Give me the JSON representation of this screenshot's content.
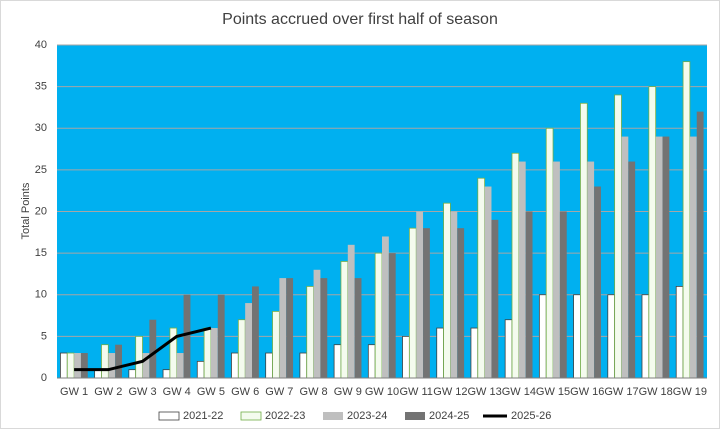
{
  "chart_data": {
    "type": "bar",
    "title": "Points accrued over first half of season",
    "y_label": "Total Points",
    "categories": [
      "GW 1",
      "GW 2",
      "GW 3",
      "GW 4",
      "GW 5",
      "GW 6",
      "GW 7",
      "GW 8",
      "GW 9",
      "GW 10",
      "GW 11",
      "GW 12",
      "GW 13",
      "GW 14",
      "GW 15",
      "GW 16",
      "GW 17",
      "GW 18",
      "GW 19"
    ],
    "series": [
      {
        "name": "2021-22",
        "color": "#ffffff",
        "stroke": "#404040",
        "values": [
          3,
          1,
          1,
          1,
          2,
          3,
          3,
          3,
          4,
          4,
          5,
          6,
          6,
          7,
          10,
          10,
          10,
          10,
          11
        ]
      },
      {
        "name": "2022-23",
        "color": "#f4fbee",
        "stroke": "#70ad47",
        "values": [
          3,
          4,
          5,
          6,
          6,
          7,
          8,
          11,
          14,
          15,
          18,
          21,
          24,
          27,
          30,
          33,
          34,
          35,
          38
        ]
      },
      {
        "name": "2023-24",
        "color": "#bfbfbf",
        "values": [
          3,
          3,
          3,
          3,
          6,
          9,
          12,
          13,
          16,
          17,
          20,
          20,
          23,
          26,
          26,
          26,
          29,
          29,
          29
        ]
      },
      {
        "name": "2024-25",
        "color": "#737373",
        "values": [
          3,
          4,
          7,
          10,
          10,
          11,
          12,
          12,
          12,
          15,
          18,
          18,
          19,
          20,
          20,
          23,
          26,
          29,
          32
        ]
      },
      {
        "name": "2025-26",
        "type": "line",
        "color": "#000000",
        "values": [
          1,
          1,
          2,
          5,
          6,
          null,
          null,
          null,
          null,
          null,
          null,
          null,
          null,
          null,
          null,
          null,
          null,
          null,
          null
        ]
      }
    ],
    "ylim": [
      0,
      40
    ],
    "yticks": [
      0,
      5,
      10,
      15,
      20,
      25,
      30,
      35,
      40
    ],
    "grid": true,
    "plot_background": "#00b0f0",
    "legend": "bottom"
  }
}
